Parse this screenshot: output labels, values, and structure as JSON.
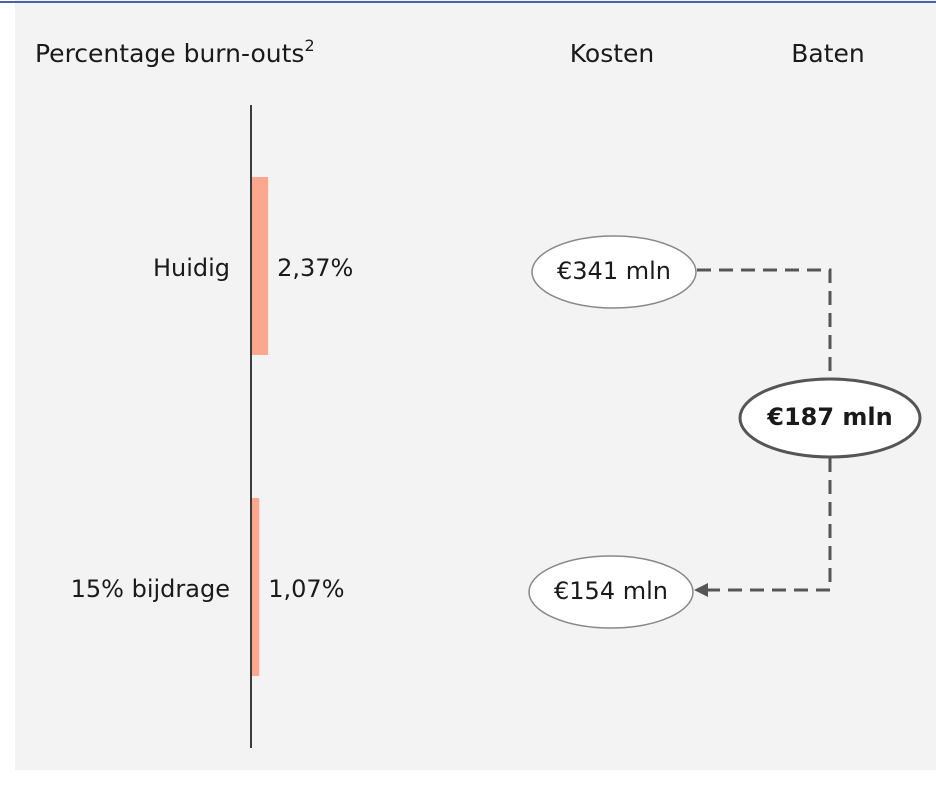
{
  "chart_data": {
    "type": "bar",
    "orientation": "horizontal",
    "title": "Percentage burn-outs",
    "title_footnote": "2",
    "categories": [
      "Huidig",
      "15% bijdrage"
    ],
    "values": [
      2.37,
      1.07
    ],
    "value_labels": [
      "2,37%",
      "1,07%"
    ],
    "color": "#fca78e"
  },
  "diagram": {
    "headers": [
      "Kosten",
      "Baten"
    ],
    "nodes": [
      {
        "label": "€341 mln"
      },
      {
        "label": "€154 mln"
      },
      {
        "label": "€187 mln"
      }
    ]
  }
}
